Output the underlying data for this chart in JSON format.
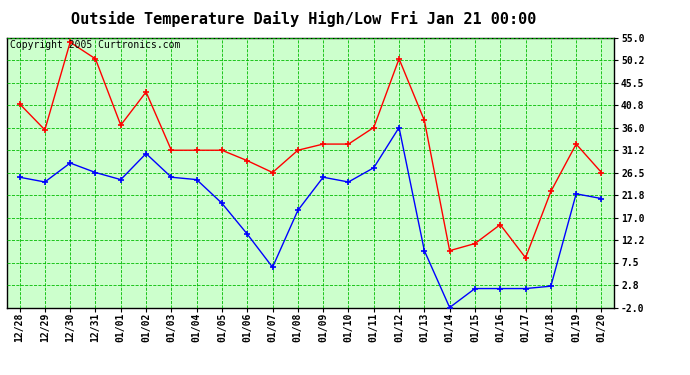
{
  "title": "Outside Temperature Daily High/Low Fri Jan 21 00:00",
  "copyright": "Copyright 2005 Curtronics.com",
  "labels": [
    "12/28",
    "12/29",
    "12/30",
    "12/31",
    "01/01",
    "01/02",
    "01/03",
    "01/04",
    "01/05",
    "01/06",
    "01/07",
    "01/08",
    "01/09",
    "01/10",
    "01/11",
    "01/12",
    "01/13",
    "01/14",
    "01/15",
    "01/16",
    "01/17",
    "01/18",
    "01/19",
    "01/20"
  ],
  "high_temps": [
    41.0,
    35.5,
    54.0,
    50.5,
    36.5,
    43.5,
    31.2,
    31.2,
    31.2,
    29.0,
    26.5,
    31.2,
    32.5,
    32.5,
    36.0,
    50.5,
    37.5,
    10.0,
    11.5,
    15.5,
    8.5,
    22.5,
    32.5,
    26.5
  ],
  "low_temps": [
    25.5,
    24.5,
    28.5,
    26.5,
    25.0,
    30.5,
    25.5,
    25.0,
    20.0,
    13.5,
    6.5,
    18.5,
    25.5,
    24.5,
    27.5,
    36.0,
    10.0,
    -2.0,
    2.0,
    2.0,
    2.0,
    2.5,
    22.0,
    21.0
  ],
  "high_color": "#ff0000",
  "low_color": "#0000ff",
  "grid_color": "#00bb00",
  "background_color": "#ccffcc",
  "yticks": [
    -2.0,
    2.8,
    7.5,
    12.2,
    17.0,
    21.8,
    26.5,
    31.2,
    36.0,
    40.8,
    45.5,
    50.2,
    55.0
  ],
  "ymin": -2.0,
  "ymax": 55.0,
  "title_fontsize": 11,
  "axis_fontsize": 7,
  "copyright_fontsize": 7
}
